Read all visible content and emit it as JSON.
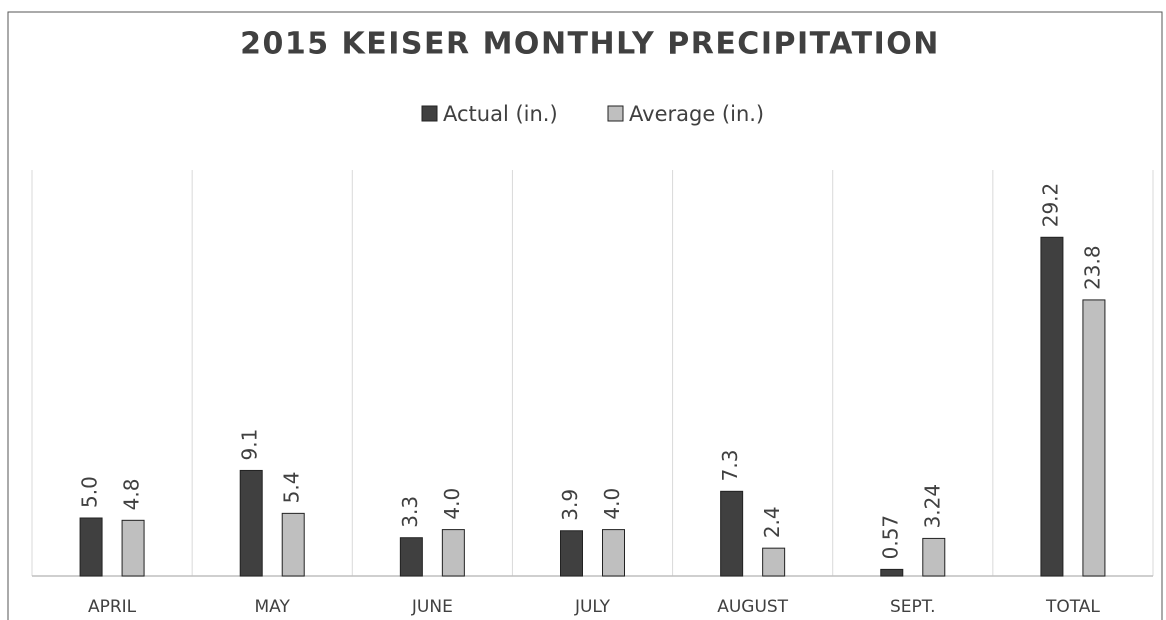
{
  "chart_data": {
    "type": "bar",
    "title": "2015 KEISER MONTHLY PRECIPITATION",
    "categories": [
      "APRIL",
      "MAY",
      "JUNE",
      "JULY",
      "AUGUST",
      "SEPT.",
      "TOTAL"
    ],
    "series": [
      {
        "name": "Actual (in.)",
        "color": "#404040",
        "values": [
          5.0,
          9.1,
          3.3,
          3.9,
          7.3,
          0.57,
          29.2
        ],
        "value_labels": [
          "5.0",
          "9.1",
          "3.3",
          "3.9",
          "7.3",
          "0.57",
          "29.2"
        ]
      },
      {
        "name": "Average (in.)",
        "color": "#bfbfbf",
        "values": [
          4.8,
          5.4,
          4.0,
          4.0,
          2.4,
          3.24,
          23.8
        ],
        "value_labels": [
          "4.8",
          "5.4",
          "4.0",
          "4.0",
          "2.4",
          "3.24",
          "23.8"
        ]
      }
    ],
    "ylim": [
      0,
      35
    ],
    "legend": "top"
  }
}
